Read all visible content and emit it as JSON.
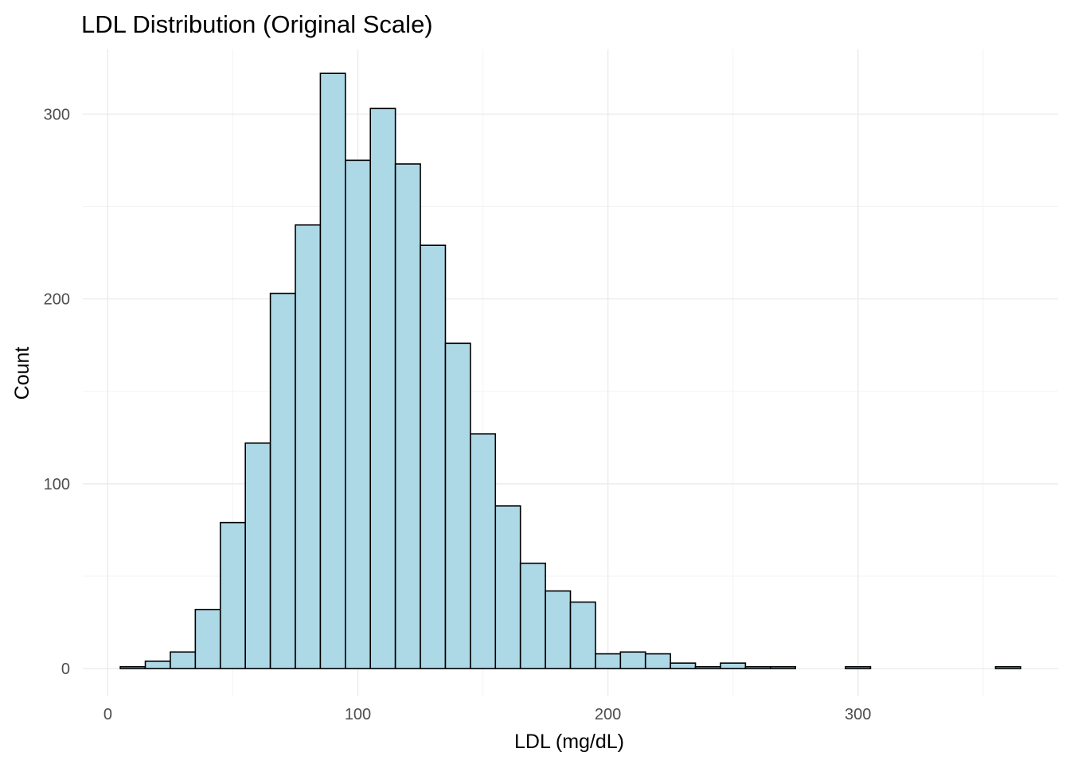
{
  "chart_data": {
    "type": "bar",
    "subtype": "histogram",
    "title": "LDL Distribution (Original Scale)",
    "xlabel": "LDL (mg/dL)",
    "ylabel": "Count",
    "xlim": [
      -10,
      380
    ],
    "ylim": [
      -15,
      335
    ],
    "x_ticks": [
      0,
      100,
      200,
      300
    ],
    "y_ticks": [
      0,
      100,
      200,
      300
    ],
    "grid": true,
    "legend": "none",
    "bin_width": 10,
    "bin_start": 5,
    "bins": [
      {
        "x0": 5,
        "x1": 15,
        "count": 1
      },
      {
        "x0": 15,
        "x1": 25,
        "count": 4
      },
      {
        "x0": 25,
        "x1": 35,
        "count": 9
      },
      {
        "x0": 35,
        "x1": 45,
        "count": 32
      },
      {
        "x0": 45,
        "x1": 55,
        "count": 79
      },
      {
        "x0": 55,
        "x1": 65,
        "count": 122
      },
      {
        "x0": 65,
        "x1": 75,
        "count": 203
      },
      {
        "x0": 75,
        "x1": 85,
        "count": 240
      },
      {
        "x0": 85,
        "x1": 95,
        "count": 322
      },
      {
        "x0": 95,
        "x1": 105,
        "count": 275
      },
      {
        "x0": 105,
        "x1": 115,
        "count": 303
      },
      {
        "x0": 115,
        "x1": 125,
        "count": 273
      },
      {
        "x0": 125,
        "x1": 135,
        "count": 229
      },
      {
        "x0": 135,
        "x1": 145,
        "count": 176
      },
      {
        "x0": 145,
        "x1": 155,
        "count": 127
      },
      {
        "x0": 155,
        "x1": 165,
        "count": 88
      },
      {
        "x0": 165,
        "x1": 175,
        "count": 57
      },
      {
        "x0": 175,
        "x1": 185,
        "count": 42
      },
      {
        "x0": 185,
        "x1": 195,
        "count": 36
      },
      {
        "x0": 195,
        "x1": 205,
        "count": 8
      },
      {
        "x0": 205,
        "x1": 215,
        "count": 9
      },
      {
        "x0": 215,
        "x1": 225,
        "count": 8
      },
      {
        "x0": 225,
        "x1": 235,
        "count": 3
      },
      {
        "x0": 235,
        "x1": 245,
        "count": 1
      },
      {
        "x0": 245,
        "x1": 255,
        "count": 3
      },
      {
        "x0": 255,
        "x1": 265,
        "count": 1
      },
      {
        "x0": 265,
        "x1": 275,
        "count": 1
      },
      {
        "x0": 275,
        "x1": 285,
        "count": 0
      },
      {
        "x0": 285,
        "x1": 295,
        "count": 0
      },
      {
        "x0": 295,
        "x1": 305,
        "count": 1
      },
      {
        "x0": 305,
        "x1": 315,
        "count": 0
      },
      {
        "x0": 315,
        "x1": 325,
        "count": 0
      },
      {
        "x0": 325,
        "x1": 335,
        "count": 0
      },
      {
        "x0": 335,
        "x1": 345,
        "count": 0
      },
      {
        "x0": 345,
        "x1": 355,
        "count": 0
      },
      {
        "x0": 355,
        "x1": 365,
        "count": 1
      }
    ],
    "colors": {
      "bar_fill": "#add8e6",
      "bar_outline": "#000000",
      "grid": "#ebebeb",
      "tick_text": "#4d4d4d"
    }
  }
}
